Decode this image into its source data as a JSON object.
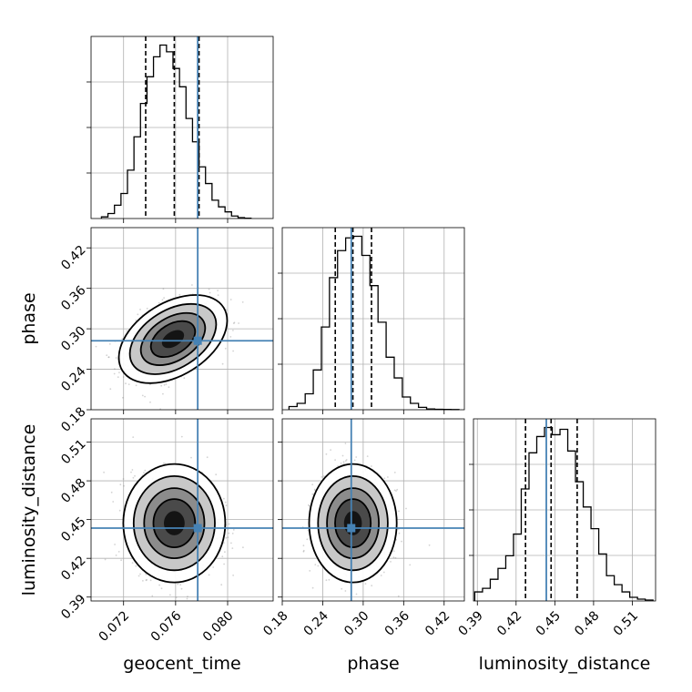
{
  "chart_data": {
    "type": "corner",
    "parameters": [
      "geocent_time",
      "phase",
      "luminosity_distance"
    ],
    "axes": {
      "geocent_time": {
        "range": [
          0.0695,
          0.0835
        ],
        "ticks": [
          0.072,
          0.076,
          0.08
        ],
        "tick_labels": [
          "0.072",
          "0.076",
          "0.080"
        ]
      },
      "phase": {
        "range": [
          0.18,
          0.45
        ],
        "ticks": [
          0.18,
          0.24,
          0.3,
          0.36,
          0.42
        ],
        "tick_labels": [
          "0.18",
          "0.24",
          "0.30",
          "0.36",
          "0.42"
        ]
      },
      "luminosity_distance": {
        "range": [
          0.387,
          0.528
        ],
        "ticks": [
          0.39,
          0.42,
          0.45,
          0.48,
          0.51
        ],
        "tick_labels": [
          "0.39",
          "0.42",
          "0.45",
          "0.48",
          "0.51"
        ]
      }
    },
    "truths": {
      "geocent_time": 0.0777,
      "phase": 0.2823,
      "luminosity_distance": 0.4434
    },
    "histograms": [
      {
        "param": "geocent_time",
        "bin_edges": [
          0.0703,
          0.0708,
          0.0713,
          0.0718,
          0.0723,
          0.0728,
          0.0733,
          0.0738,
          0.0743,
          0.0748,
          0.0753,
          0.0758,
          0.0763,
          0.0768,
          0.0773,
          0.0778,
          0.0783,
          0.0788,
          0.0793,
          0.0798,
          0.0803,
          0.0808,
          0.0813,
          0.0818
        ],
        "counts": [
          0.1,
          0.3,
          0.8,
          1.5,
          2.9,
          4.9,
          6.9,
          8.5,
          9.7,
          10.4,
          10.0,
          9.0,
          7.9,
          6.0,
          4.6,
          3.1,
          2.1,
          1.1,
          0.7,
          0.4,
          0.15,
          0.05,
          0.02
        ],
        "quantiles": [
          0.0737,
          0.0759,
          0.0778
        ]
      },
      {
        "param": "phase",
        "bin_edges": [
          0.19,
          0.202,
          0.214,
          0.226,
          0.238,
          0.25,
          0.262,
          0.274,
          0.286,
          0.298,
          0.31,
          0.322,
          0.334,
          0.346,
          0.358,
          0.37,
          0.382,
          0.394,
          0.406,
          0.418,
          0.43,
          0.442
        ],
        "counts": [
          0.2,
          0.4,
          1.0,
          2.5,
          5.2,
          8.3,
          10.0,
          10.8,
          10.9,
          9.7,
          7.8,
          5.5,
          3.3,
          2.0,
          0.8,
          0.4,
          0.15,
          0.05,
          0.03,
          0.02,
          0.01
        ],
        "quantiles": [
          0.2586,
          0.2847,
          0.3123
        ]
      },
      {
        "param": "luminosity_distance",
        "bin_edges": [
          0.388,
          0.394,
          0.4,
          0.406,
          0.412,
          0.418,
          0.424,
          0.43,
          0.436,
          0.442,
          0.448,
          0.454,
          0.46,
          0.466,
          0.472,
          0.478,
          0.484,
          0.49,
          0.496,
          0.502,
          0.508,
          0.514,
          0.52,
          0.526
        ],
        "counts": [
          0.5,
          0.7,
          1.2,
          1.8,
          2.5,
          3.7,
          6.2,
          8.2,
          9.1,
          9.6,
          9.2,
          9.5,
          8.3,
          6.6,
          5.2,
          4.0,
          2.6,
          1.4,
          0.9,
          0.5,
          0.2,
          0.1,
          0.05
        ],
        "quantiles": [
          0.4273,
          0.4471,
          0.4673
        ]
      }
    ],
    "joint_2d": [
      {
        "x": "geocent_time",
        "y": "phase",
        "mean": [
          0.0758,
          0.2848
        ],
        "std": [
          0.0017,
          0.0267
        ],
        "correlation": 0.42
      },
      {
        "x": "geocent_time",
        "y": "luminosity_distance",
        "mean": [
          0.0759,
          0.4472
        ],
        "std": [
          0.0016,
          0.0187
        ],
        "correlation": 0.0
      },
      {
        "x": "phase",
        "y": "luminosity_distance",
        "mean": [
          0.2847,
          0.4472
        ],
        "std": [
          0.0265,
          0.0187
        ],
        "correlation": 0.0
      }
    ],
    "colors": {
      "truth": "#4682b4",
      "hist": "#000000",
      "grid": "#b0b0b0"
    }
  }
}
